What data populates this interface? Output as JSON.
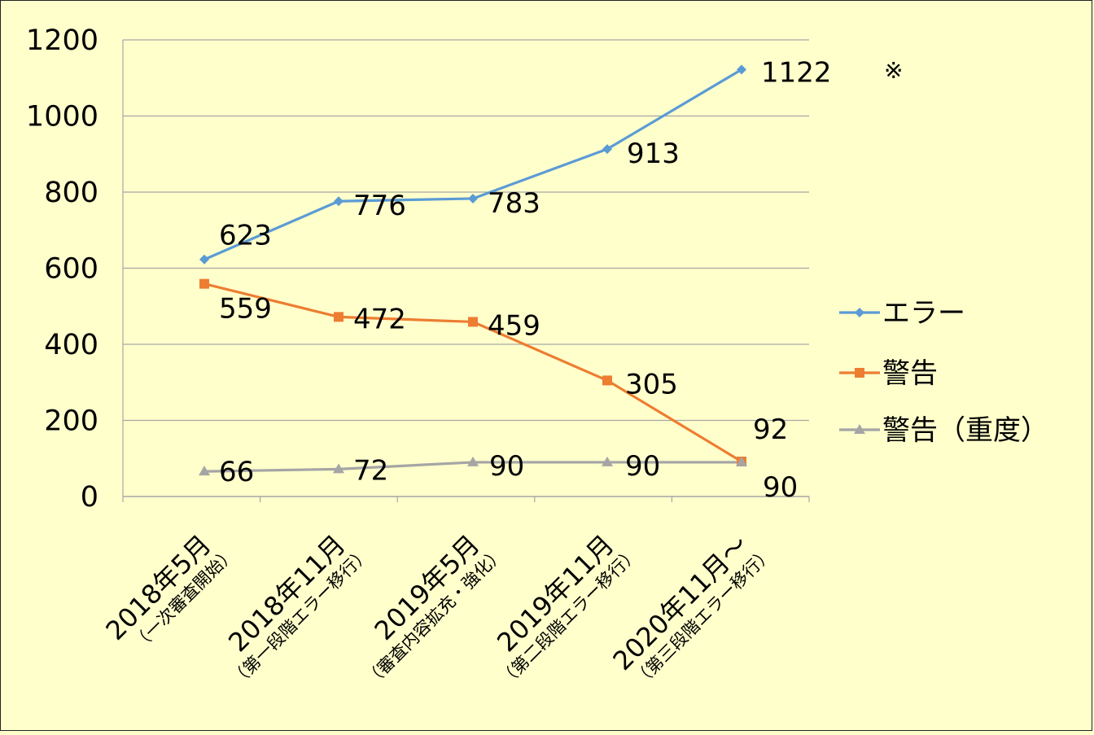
{
  "chart_data": {
    "type": "line",
    "categories": [
      {
        "main": "2018年5月",
        "sub": "（一次審査開始）"
      },
      {
        "main": "2018年11月",
        "sub": "（第一段階エラー移行）"
      },
      {
        "main": "2019年5月",
        "sub": "（審査内容拡充・強化）"
      },
      {
        "main": "2019年11月",
        "sub": "（第二段階エラー移行）"
      },
      {
        "main": "2020年11月～",
        "sub": "（第三段階エラー移行）"
      }
    ],
    "series": [
      {
        "name": "エラー",
        "color": "#5b9bd5",
        "marker": "diamond",
        "values": [
          623,
          776,
          783,
          913,
          1122
        ]
      },
      {
        "name": "警告",
        "color": "#ed7d31",
        "marker": "square",
        "values": [
          559,
          472,
          459,
          305,
          92
        ]
      },
      {
        "name": "警告（重度）",
        "color": "#a5a5a5",
        "marker": "triangle",
        "values": [
          66,
          72,
          90,
          90,
          90
        ]
      }
    ],
    "yticks": [
      "0",
      "200",
      "400",
      "600",
      "800",
      "1000",
      "1200"
    ],
    "ylim": [
      0,
      1200
    ],
    "grid": true,
    "legend": "right",
    "note": "※"
  }
}
